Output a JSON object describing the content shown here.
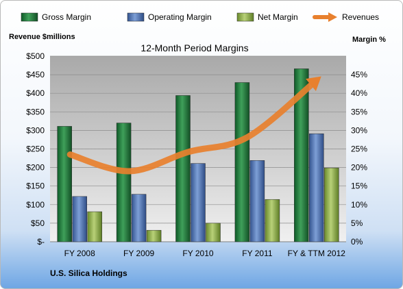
{
  "chart_data": {
    "type": "bar",
    "title": "12-Month Period Margins",
    "categories": [
      "FY 2008",
      "FY 2009",
      "FY 2010",
      "FY 2011",
      "FY & TTM 2012"
    ],
    "series": [
      {
        "name": "Gross Margin",
        "axis": "left",
        "values": [
          311,
          320,
          394,
          429,
          466
        ],
        "color": "#1e7a3c"
      },
      {
        "name": "Operating Margin",
        "axis": "left",
        "values": [
          122,
          128,
          211,
          219,
          291
        ],
        "color": "#4a6fb0"
      },
      {
        "name": "Net Margin",
        "axis": "left",
        "values": [
          81,
          31,
          50,
          114,
          199
        ],
        "color": "#8fb04a"
      },
      {
        "name": "Revenues",
        "axis": "left",
        "type": "line",
        "values": [
          235,
          190,
          242,
          282,
          435
        ],
        "color": "#e8802e"
      }
    ],
    "ylabel_left": "Revenue $millions",
    "ylabel_right": "Margin %",
    "yticks_left": [
      "$-",
      "$50",
      "$100",
      "$150",
      "$200",
      "$250",
      "$300",
      "$350",
      "$400",
      "$450",
      "$500"
    ],
    "yticks_right": [
      "0%",
      "5%",
      "10%",
      "15%",
      "20%",
      "25%",
      "30%",
      "35%",
      "40%",
      "45%"
    ],
    "ylim_left": [
      0,
      500
    ],
    "ylim_right": [
      0,
      45
    ],
    "grid": true,
    "legend_position": "top",
    "source_label": "U.S. Silica Holdings"
  }
}
